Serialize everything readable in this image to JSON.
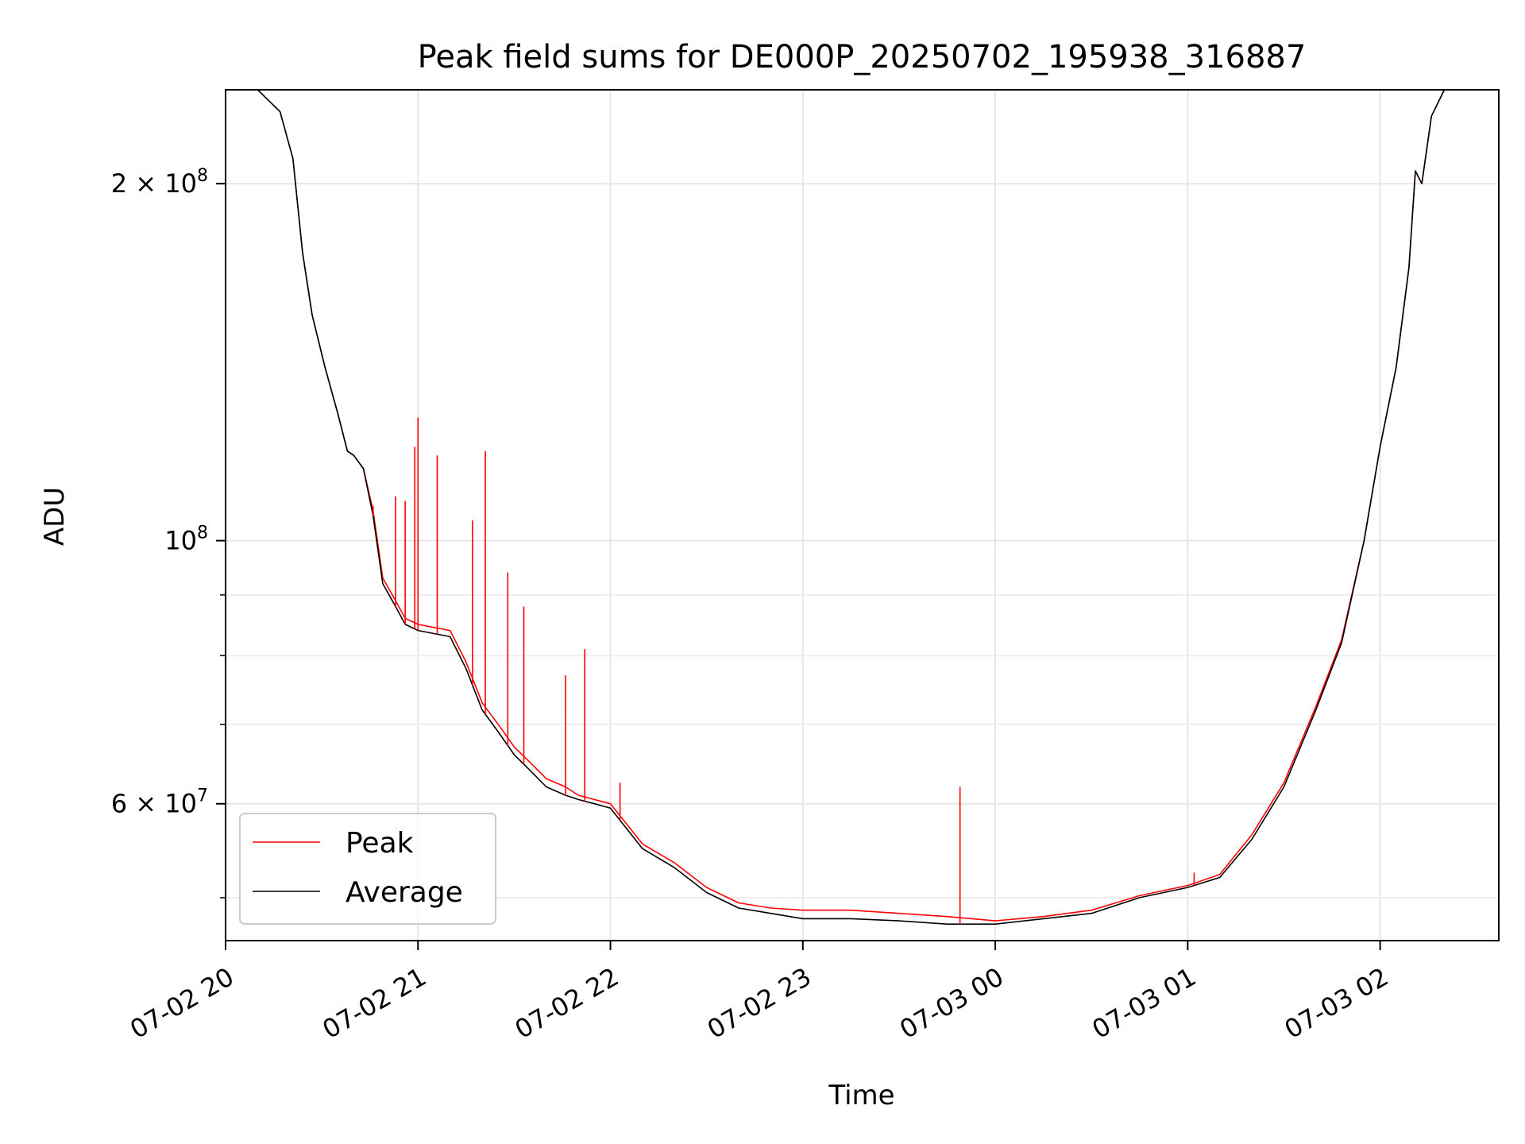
{
  "chart_data": {
    "type": "line",
    "title": "Peak field sums for DE000P_20250702_195938_316887",
    "xlabel": "Time",
    "ylabel": "ADU",
    "y_scale": "log",
    "xlim": [
      "2025-07-02 20:00",
      "2025-07-03 02:37"
    ],
    "ylim": [
      46000000,
      240000000
    ],
    "grid": true,
    "legend": "lower-left",
    "x_ticks": [
      "07-02 20",
      "07-02 21",
      "07-02 22",
      "07-02 23",
      "07-03 00",
      "07-03 01",
      "07-03 02"
    ],
    "y_ticks_major": [
      {
        "value": 200000000,
        "label": "2 × 10^8"
      },
      {
        "value": 100000000,
        "label": "10^8"
      },
      {
        "value": 60000000,
        "label": "6 × 10^7"
      }
    ],
    "y_ticks_minor": [
      50000000,
      70000000,
      80000000,
      90000000
    ],
    "series": [
      {
        "name": "Average",
        "color": "#000000",
        "x": [
          "2025-07-02 20:00",
          "2025-07-02 20:10",
          "2025-07-02 20:17",
          "2025-07-02 20:21",
          "2025-07-02 20:24",
          "2025-07-02 20:27",
          "2025-07-02 20:31",
          "2025-07-02 20:35",
          "2025-07-02 20:38",
          "2025-07-02 20:40",
          "2025-07-02 20:43",
          "2025-07-02 20:46",
          "2025-07-02 20:49",
          "2025-07-02 20:53",
          "2025-07-02 20:56",
          "2025-07-02 21:00",
          "2025-07-02 21:05",
          "2025-07-02 21:10",
          "2025-07-02 21:15",
          "2025-07-02 21:20",
          "2025-07-02 21:25",
          "2025-07-02 21:30",
          "2025-07-02 21:35",
          "2025-07-02 21:40",
          "2025-07-02 21:46",
          "2025-07-02 21:50",
          "2025-07-02 21:55",
          "2025-07-02 22:00",
          "2025-07-02 22:10",
          "2025-07-02 22:20",
          "2025-07-02 22:30",
          "2025-07-02 22:40",
          "2025-07-02 22:50",
          "2025-07-02 23:00",
          "2025-07-02 23:15",
          "2025-07-02 23:30",
          "2025-07-02 23:45",
          "2025-07-03 00:00",
          "2025-07-03 00:15",
          "2025-07-03 00:30",
          "2025-07-03 00:45",
          "2025-07-03 01:00",
          "2025-07-03 01:10",
          "2025-07-03 01:20",
          "2025-07-03 01:30",
          "2025-07-03 01:40",
          "2025-07-03 01:48",
          "2025-07-03 01:55",
          "2025-07-03 02:00",
          "2025-07-03 02:05",
          "2025-07-03 02:09",
          "2025-07-03 02:11",
          "2025-07-03 02:13",
          "2025-07-03 02:16",
          "2025-07-03 02:20",
          "2025-07-03 02:37"
        ],
        "values": [
          240000000,
          240000000,
          230000000,
          210000000,
          175000000,
          155000000,
          140000000,
          128000000,
          119000000,
          118000000,
          115000000,
          105000000,
          92000000,
          88000000,
          85000000,
          84000000,
          83500000,
          83000000,
          78000000,
          72000000,
          69000000,
          66000000,
          64000000,
          62000000,
          61000000,
          60500000,
          60000000,
          59500000,
          55000000,
          53000000,
          50500000,
          49000000,
          48500000,
          48000000,
          48000000,
          47800000,
          47500000,
          47500000,
          48000000,
          48500000,
          50000000,
          51000000,
          52000000,
          56000000,
          62000000,
          72000000,
          82000000,
          100000000,
          120000000,
          140000000,
          170000000,
          205000000,
          200000000,
          228000000,
          240000000,
          240000000
        ]
      },
      {
        "name": "Peak",
        "color": "#ff0000",
        "x": [
          "2025-07-02 20:00",
          "2025-07-02 20:10",
          "2025-07-02 20:17",
          "2025-07-02 20:21",
          "2025-07-02 20:24",
          "2025-07-02 20:27",
          "2025-07-02 20:31",
          "2025-07-02 20:35",
          "2025-07-02 20:38",
          "2025-07-02 20:40",
          "2025-07-02 20:43",
          "2025-07-02 20:46",
          "2025-07-02 20:49",
          "2025-07-02 20:53",
          "2025-07-02 20:56",
          "2025-07-02 21:00",
          "2025-07-02 21:05",
          "2025-07-02 21:10",
          "2025-07-02 21:15",
          "2025-07-02 21:20",
          "2025-07-02 21:25",
          "2025-07-02 21:30",
          "2025-07-02 21:35",
          "2025-07-02 21:40",
          "2025-07-02 21:46",
          "2025-07-02 21:50",
          "2025-07-02 21:55",
          "2025-07-02 22:00",
          "2025-07-02 22:10",
          "2025-07-02 22:20",
          "2025-07-02 22:30",
          "2025-07-02 22:40",
          "2025-07-02 22:50",
          "2025-07-02 23:00",
          "2025-07-02 23:15",
          "2025-07-02 23:30",
          "2025-07-02 23:45",
          "2025-07-03 00:00",
          "2025-07-03 00:15",
          "2025-07-03 00:30",
          "2025-07-03 00:45",
          "2025-07-03 01:00",
          "2025-07-03 01:10",
          "2025-07-03 01:20",
          "2025-07-03 01:30",
          "2025-07-03 01:40",
          "2025-07-03 01:48",
          "2025-07-03 01:55",
          "2025-07-03 02:00",
          "2025-07-03 02:05",
          "2025-07-03 02:09",
          "2025-07-03 02:11",
          "2025-07-03 02:13",
          "2025-07-03 02:16",
          "2025-07-03 02:20",
          "2025-07-03 02:37"
        ],
        "values": [
          240000000,
          240000000,
          230000000,
          210000000,
          175000000,
          155000000,
          140000000,
          128000000,
          119000000,
          118000000,
          115000000,
          106000000,
          93000000,
          89000000,
          86000000,
          85000000,
          84500000,
          84000000,
          79000000,
          73000000,
          70000000,
          67000000,
          65000000,
          63000000,
          62000000,
          61000000,
          60500000,
          60000000,
          55500000,
          53500000,
          51000000,
          49500000,
          49000000,
          48800000,
          48800000,
          48500000,
          48200000,
          47800000,
          48200000,
          48800000,
          50200000,
          51200000,
          52300000,
          56500000,
          62500000,
          72500000,
          82500000,
          100000000,
          120000000,
          140000000,
          170000000,
          205000000,
          200000000,
          228000000,
          240000000,
          240000000
        ],
        "spikes": [
          {
            "x": "2025-07-02 20:46",
            "y": 107000000
          },
          {
            "x": "2025-07-02 20:53",
            "y": 109000000
          },
          {
            "x": "2025-07-02 20:56",
            "y": 108000000
          },
          {
            "x": "2025-07-02 20:59",
            "y": 120000000
          },
          {
            "x": "2025-07-02 21:00",
            "y": 127000000
          },
          {
            "x": "2025-07-02 21:06",
            "y": 118000000
          },
          {
            "x": "2025-07-02 21:17",
            "y": 104000000
          },
          {
            "x": "2025-07-02 21:21",
            "y": 119000000
          },
          {
            "x": "2025-07-02 21:28",
            "y": 94000000
          },
          {
            "x": "2025-07-02 21:33",
            "y": 88000000
          },
          {
            "x": "2025-07-02 21:46",
            "y": 77000000
          },
          {
            "x": "2025-07-02 21:52",
            "y": 81000000
          },
          {
            "x": "2025-07-02 22:03",
            "y": 62500000
          },
          {
            "x": "2025-07-02 23:49",
            "y": 62000000
          },
          {
            "x": "2025-07-03 01:02",
            "y": 52500000
          }
        ]
      }
    ]
  }
}
